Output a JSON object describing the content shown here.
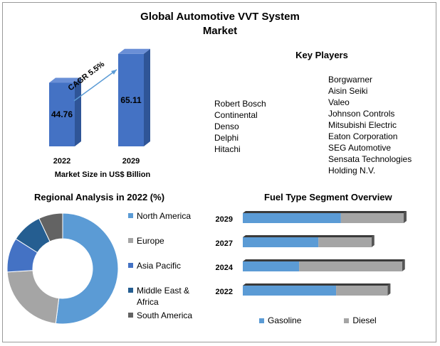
{
  "title_lines": [
    "Global Automotive VVT System",
    "Market"
  ],
  "colors": {
    "bar_front": "#4472c4",
    "bar_side": "#2f5597",
    "bar_top": "#6a8fd6",
    "gasoline": "#5b9bd5",
    "diesel": "#a5a5a5",
    "north_america": "#5b9bd5",
    "europe": "#a5a5a5",
    "asia_pacific": "#4472c4",
    "middle_east_africa": "#255e91",
    "south_america": "#636363"
  },
  "market_size": {
    "cagr_label": "CAGR 5.5%",
    "xlabel": "Market Size in US$ Billion"
  },
  "key_players": {
    "title": "Key Players",
    "left": [
      "Robert Bosch",
      "Continental",
      "Denso",
      "Delphi",
      "Hitachi"
    ],
    "right": [
      "Borgwarner",
      "Aisin Seiki",
      "Valeo",
      "Johnson Controls",
      "Mitsubishi Electric",
      "Eaton Corporation",
      "SEG Automotive",
      "Sensata Technologies Holding N.V."
    ]
  },
  "regional": {
    "title": "Regional Analysis in 2022 (%)",
    "legend_icon": "square-swatch-icon"
  },
  "fuel": {
    "title": "Fuel Type Segment Overview"
  },
  "chart_data": [
    {
      "type": "bar",
      "title": "Market Size in US$ Billion",
      "categories": [
        "2022",
        "2029"
      ],
      "values": [
        44.76,
        65.11
      ],
      "annotation": "CAGR 5.5%",
      "xlabel": "Market Size in US$ Billion",
      "ylabel": ""
    },
    {
      "type": "pie",
      "title": "Regional Analysis in 2022 (%)",
      "categories": [
        "North America",
        "Europe",
        "Asia Pacific",
        "Middle East & Africa",
        "South America"
      ],
      "values": [
        52,
        22,
        10,
        9,
        7
      ]
    },
    {
      "type": "bar",
      "orientation": "horizontal",
      "stacked": true,
      "title": "Fuel Type Segment Overview",
      "categories": [
        "2029",
        "2027",
        "2024",
        "2022"
      ],
      "series": [
        {
          "name": "Gasoline",
          "values": [
            61,
            47,
            35,
            58
          ]
        },
        {
          "name": "Diesel",
          "values": [
            39,
            33,
            64,
            32
          ]
        }
      ]
    }
  ]
}
